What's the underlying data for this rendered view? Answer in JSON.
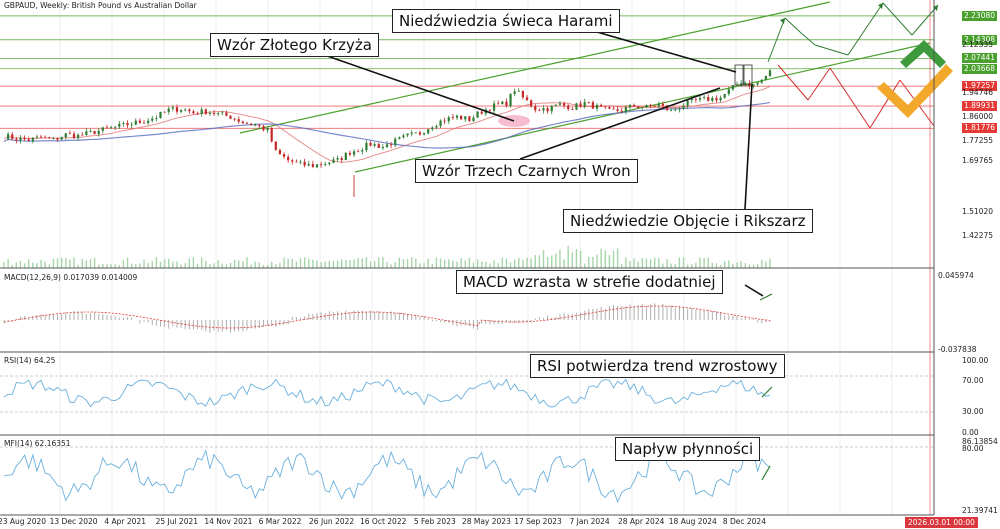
{
  "header": {
    "symbol": "GBPAUD, Weekly:",
    "description": "British Pound vs Australian Dollar"
  },
  "indicators": {
    "macd": {
      "title": "MACD(12,26,9) 0.017039 0.014009",
      "axis_max": "0.045974",
      "axis_min": "-0.037838"
    },
    "rsi": {
      "title": "RSI(14) 64.25",
      "levels": [
        "100.00",
        "70.00",
        "30.00",
        "0.00"
      ]
    },
    "mfi": {
      "title": "MFI(14) 62.16351",
      "levels": [
        "86.13854",
        "80.00",
        "21.39741"
      ]
    }
  },
  "annotations": {
    "harami": "Niedźwiedzia świeca Harami",
    "golden_cross": "Wzór Złotego Krzyża",
    "three_crows": "Wzór Trzech Czarnych Wron",
    "engulfing": "Niedźwiedzie Objęcie i Rikszarz",
    "macd_note": "MACD wzrasta w strefie dodatniej",
    "rsi_note": "RSI potwierdza trend wzrostowy",
    "mfi_note": "Napływ płynności"
  },
  "current_time": "2026.03.01 00:00",
  "colors": {
    "bull": "#2e7d32",
    "bear": "#c62828",
    "channel": "#4aa02c",
    "level_green": "#66bb6a",
    "level_red": "#e57373",
    "ma_slow": "#e06666",
    "ma_blue": "#5c6bc0",
    "macd": "#b0b0b0",
    "signal": "#e53935",
    "rsi": "#6ab0de",
    "logo_green": "#3d9b3d",
    "logo_orange": "#f2a92b"
  },
  "chart_data": {
    "type": "candlestick",
    "price_axis": {
      "tick_labels": [
        "2.23080",
        "2.14308",
        "2.12335",
        "2.07441",
        "2.03668",
        "1.97257",
        "1.94746",
        "1.89931",
        "1.86000",
        "1.81776",
        "1.77255",
        "1.69765",
        "1.51020",
        "1.42275"
      ],
      "highlighted_levels": [
        {
          "value": "2.23080",
          "color": "#4aa02c"
        },
        {
          "value": "2.14308",
          "color": "#4aa02c"
        },
        {
          "value": "2.07441",
          "color": "#4aa02c"
        },
        {
          "value": "2.03668",
          "color": "#4aa02c"
        },
        {
          "value": "1.97257",
          "color": "#e53935"
        },
        {
          "value": "1.89931",
          "color": "#e53935"
        },
        {
          "value": "1.81776",
          "color": "#e53935"
        }
      ]
    },
    "x_tick_labels": [
      "23 Aug 2020",
      "13 Dec 2020",
      "4 Apr 2021",
      "25 Jul 2021",
      "14 Nov 2021",
      "6 Mar 2022",
      "26 Jun 2022",
      "16 Oct 2022",
      "5 Feb 2023",
      "28 May 2023",
      "17 Sep 2023",
      "7 Jan 2024",
      "28 Apr 2024",
      "18 Aug 2024",
      "8 Dec 2024"
    ],
    "price_path": [
      [
        0,
        1.79
      ],
      [
        6,
        1.78
      ],
      [
        12,
        1.775
      ],
      [
        18,
        1.785
      ],
      [
        24,
        1.775
      ],
      [
        30,
        1.795
      ],
      [
        36,
        1.79
      ],
      [
        44,
        1.805
      ],
      [
        50,
        1.815
      ],
      [
        56,
        1.825
      ],
      [
        62,
        1.835
      ],
      [
        68,
        1.845
      ],
      [
        74,
        1.86
      ],
      [
        80,
        1.885
      ],
      [
        86,
        1.89
      ],
      [
        92,
        1.875
      ],
      [
        98,
        1.88
      ],
      [
        104,
        1.87
      ],
      [
        110,
        1.86
      ],
      [
        116,
        1.84
      ],
      [
        122,
        1.83
      ],
      [
        128,
        1.81
      ],
      [
        132,
        1.73
      ],
      [
        138,
        1.7
      ],
      [
        144,
        1.685
      ],
      [
        150,
        1.68
      ],
      [
        156,
        1.69
      ],
      [
        162,
        1.7
      ],
      [
        168,
        1.73
      ],
      [
        172,
        1.74
      ],
      [
        178,
        1.76
      ],
      [
        184,
        1.75
      ],
      [
        190,
        1.77
      ],
      [
        196,
        1.79
      ],
      [
        202,
        1.8
      ],
      [
        208,
        1.83
      ],
      [
        214,
        1.85
      ],
      [
        220,
        1.86
      ],
      [
        226,
        1.85
      ],
      [
        232,
        1.88
      ],
      [
        238,
        1.9
      ],
      [
        244,
        1.91
      ],
      [
        248,
        1.96
      ],
      [
        252,
        1.93
      ],
      [
        258,
        1.89
      ],
      [
        264,
        1.89
      ],
      [
        270,
        1.905
      ],
      [
        276,
        1.895
      ],
      [
        282,
        1.91
      ],
      [
        288,
        1.895
      ],
      [
        294,
        1.88
      ],
      [
        300,
        1.885
      ],
      [
        306,
        1.9
      ],
      [
        312,
        1.895
      ],
      [
        318,
        1.905
      ],
      [
        324,
        1.88
      ],
      [
        330,
        1.905
      ],
      [
        336,
        1.92
      ],
      [
        342,
        1.925
      ],
      [
        348,
        1.93
      ],
      [
        352,
        1.955
      ],
      [
        358,
        1.99
      ],
      [
        364,
        1.975
      ],
      [
        368,
        1.995
      ],
      [
        372,
        2.025
      ]
    ],
    "volume": {
      "min": 0,
      "max": 1
    },
    "macd_range": [
      "-0.037838",
      "0.045974"
    ],
    "rsi_range": [
      0,
      100
    ],
    "mfi_range": [
      "21.39741",
      "86.13854"
    ]
  }
}
